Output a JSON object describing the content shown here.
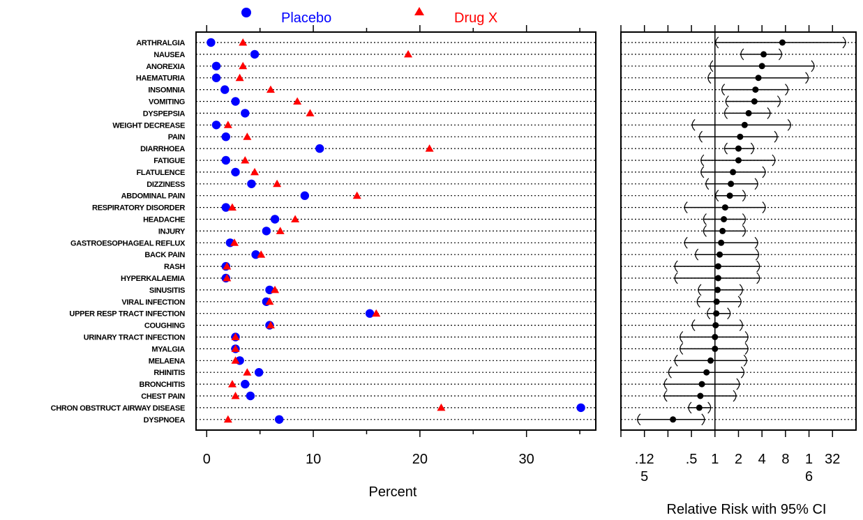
{
  "chart_data": [
    {
      "type": "scatter",
      "xlabel": "Percent",
      "xlim": [
        -1,
        36.5
      ],
      "xticks": [
        0,
        10,
        20,
        30
      ],
      "grid": true,
      "legend": {
        "placement": "top"
      },
      "categories": [
        "ARTHRALGIA",
        "NAUSEA",
        "ANOREXIA",
        "HAEMATURIA",
        "INSOMNIA",
        "VOMITING",
        "DYSPEPSIA",
        "WEIGHT DECREASE",
        "PAIN",
        "DIARRHOEA",
        "FATIGUE",
        "FLATULENCE",
        "DIZZINESS",
        "ABDOMINAL PAIN",
        "RESPIRATORY DISORDER",
        "HEADACHE",
        "INJURY",
        "GASTROESOPHAGEAL REFLUX",
        "BACK PAIN",
        "RASH",
        "HYPERKALAEMIA",
        "SINUSITIS",
        "VIRAL INFECTION",
        "UPPER RESP TRACT INFECTION",
        "COUGHING",
        "URINARY TRACT INFECTION",
        "MYALGIA",
        "MELAENA",
        "RHINITIS",
        "BRONCHITIS",
        "CHEST PAIN",
        "CHRON OBSTRUCT AIRWAY DISEASE",
        "DYSPNOEA"
      ],
      "series": [
        {
          "name": "Placebo",
          "color": "#0000ff",
          "marker": "circle",
          "values": [
            0.4,
            4.5,
            0.9,
            0.9,
            1.7,
            2.7,
            3.6,
            0.9,
            1.8,
            10.6,
            1.8,
            2.7,
            4.2,
            9.2,
            1.8,
            6.4,
            5.6,
            2.2,
            4.6,
            1.8,
            1.8,
            5.9,
            5.6,
            15.3,
            5.9,
            2.7,
            2.7,
            3.1,
            4.9,
            3.6,
            4.1,
            35.1,
            6.8
          ]
        },
        {
          "name": "Drug X",
          "color": "#ff0000",
          "marker": "triangle",
          "values": [
            3.4,
            18.9,
            3.4,
            3.1,
            6.0,
            8.5,
            9.7,
            2.0,
            3.8,
            20.9,
            3.6,
            4.5,
            6.6,
            14.1,
            2.4,
            8.3,
            6.9,
            2.6,
            5.1,
            1.9,
            1.9,
            6.4,
            5.9,
            15.9,
            6.0,
            2.7,
            2.7,
            2.7,
            3.8,
            2.4,
            2.7,
            22.0,
            2.0
          ]
        }
      ]
    },
    {
      "type": "forest",
      "xlabel": "Relative Risk with 95% CI",
      "xscale": "log2",
      "xlim": [
        0.0625,
        64
      ],
      "xticks": [
        0.125,
        0.5,
        1,
        2,
        4,
        8,
        16,
        32
      ],
      "tick_labels": [
        {
          "value": 0.125,
          "line1": ".12",
          "line2": "5"
        },
        {
          "value": 0.5,
          "line1": ".5",
          "line2": ""
        },
        {
          "value": 1,
          "line1": "1",
          "line2": ""
        },
        {
          "value": 2,
          "line1": "2",
          "line2": ""
        },
        {
          "value": 4,
          "line1": "4",
          "line2": ""
        },
        {
          "value": 8,
          "line1": "8",
          "line2": ""
        },
        {
          "value": 16,
          "line1": "1",
          "line2": "6"
        },
        {
          "value": 32,
          "line1": "32",
          "line2": ""
        }
      ],
      "reference_line": 1,
      "point": [
        7.3,
        4.2,
        4.0,
        3.6,
        3.3,
        3.2,
        2.7,
        2.4,
        2.1,
        2.0,
        2.0,
        1.7,
        1.6,
        1.55,
        1.35,
        1.3,
        1.25,
        1.2,
        1.15,
        1.1,
        1.1,
        1.08,
        1.05,
        1.04,
        1.02,
        1.0,
        1.0,
        0.88,
        0.78,
        0.68,
        0.65,
        0.63,
        0.29
      ],
      "lower": [
        1.0,
        2.1,
        0.85,
        0.8,
        1.2,
        1.35,
        1.3,
        0.5,
        0.62,
        1.3,
        0.65,
        0.65,
        0.75,
        1.0,
        0.4,
        0.7,
        0.7,
        0.4,
        0.55,
        0.3,
        0.3,
        0.6,
        0.58,
        0.78,
        0.5,
        0.35,
        0.35,
        0.3,
        0.25,
        0.22,
        0.22,
        0.45,
        0.1
      ],
      "upper": [
        48,
        7.3,
        19,
        16,
        8.8,
        7.0,
        5.2,
        9.5,
        6.4,
        3.2,
        6.0,
        4.5,
        3.6,
        2.5,
        4.5,
        2.5,
        2.5,
        3.6,
        3.7,
        3.8,
        3.8,
        2.3,
        2.2,
        1.6,
        2.3,
        2.7,
        2.7,
        2.6,
        2.4,
        2.1,
        1.9,
        0.9,
        0.75
      ]
    }
  ]
}
